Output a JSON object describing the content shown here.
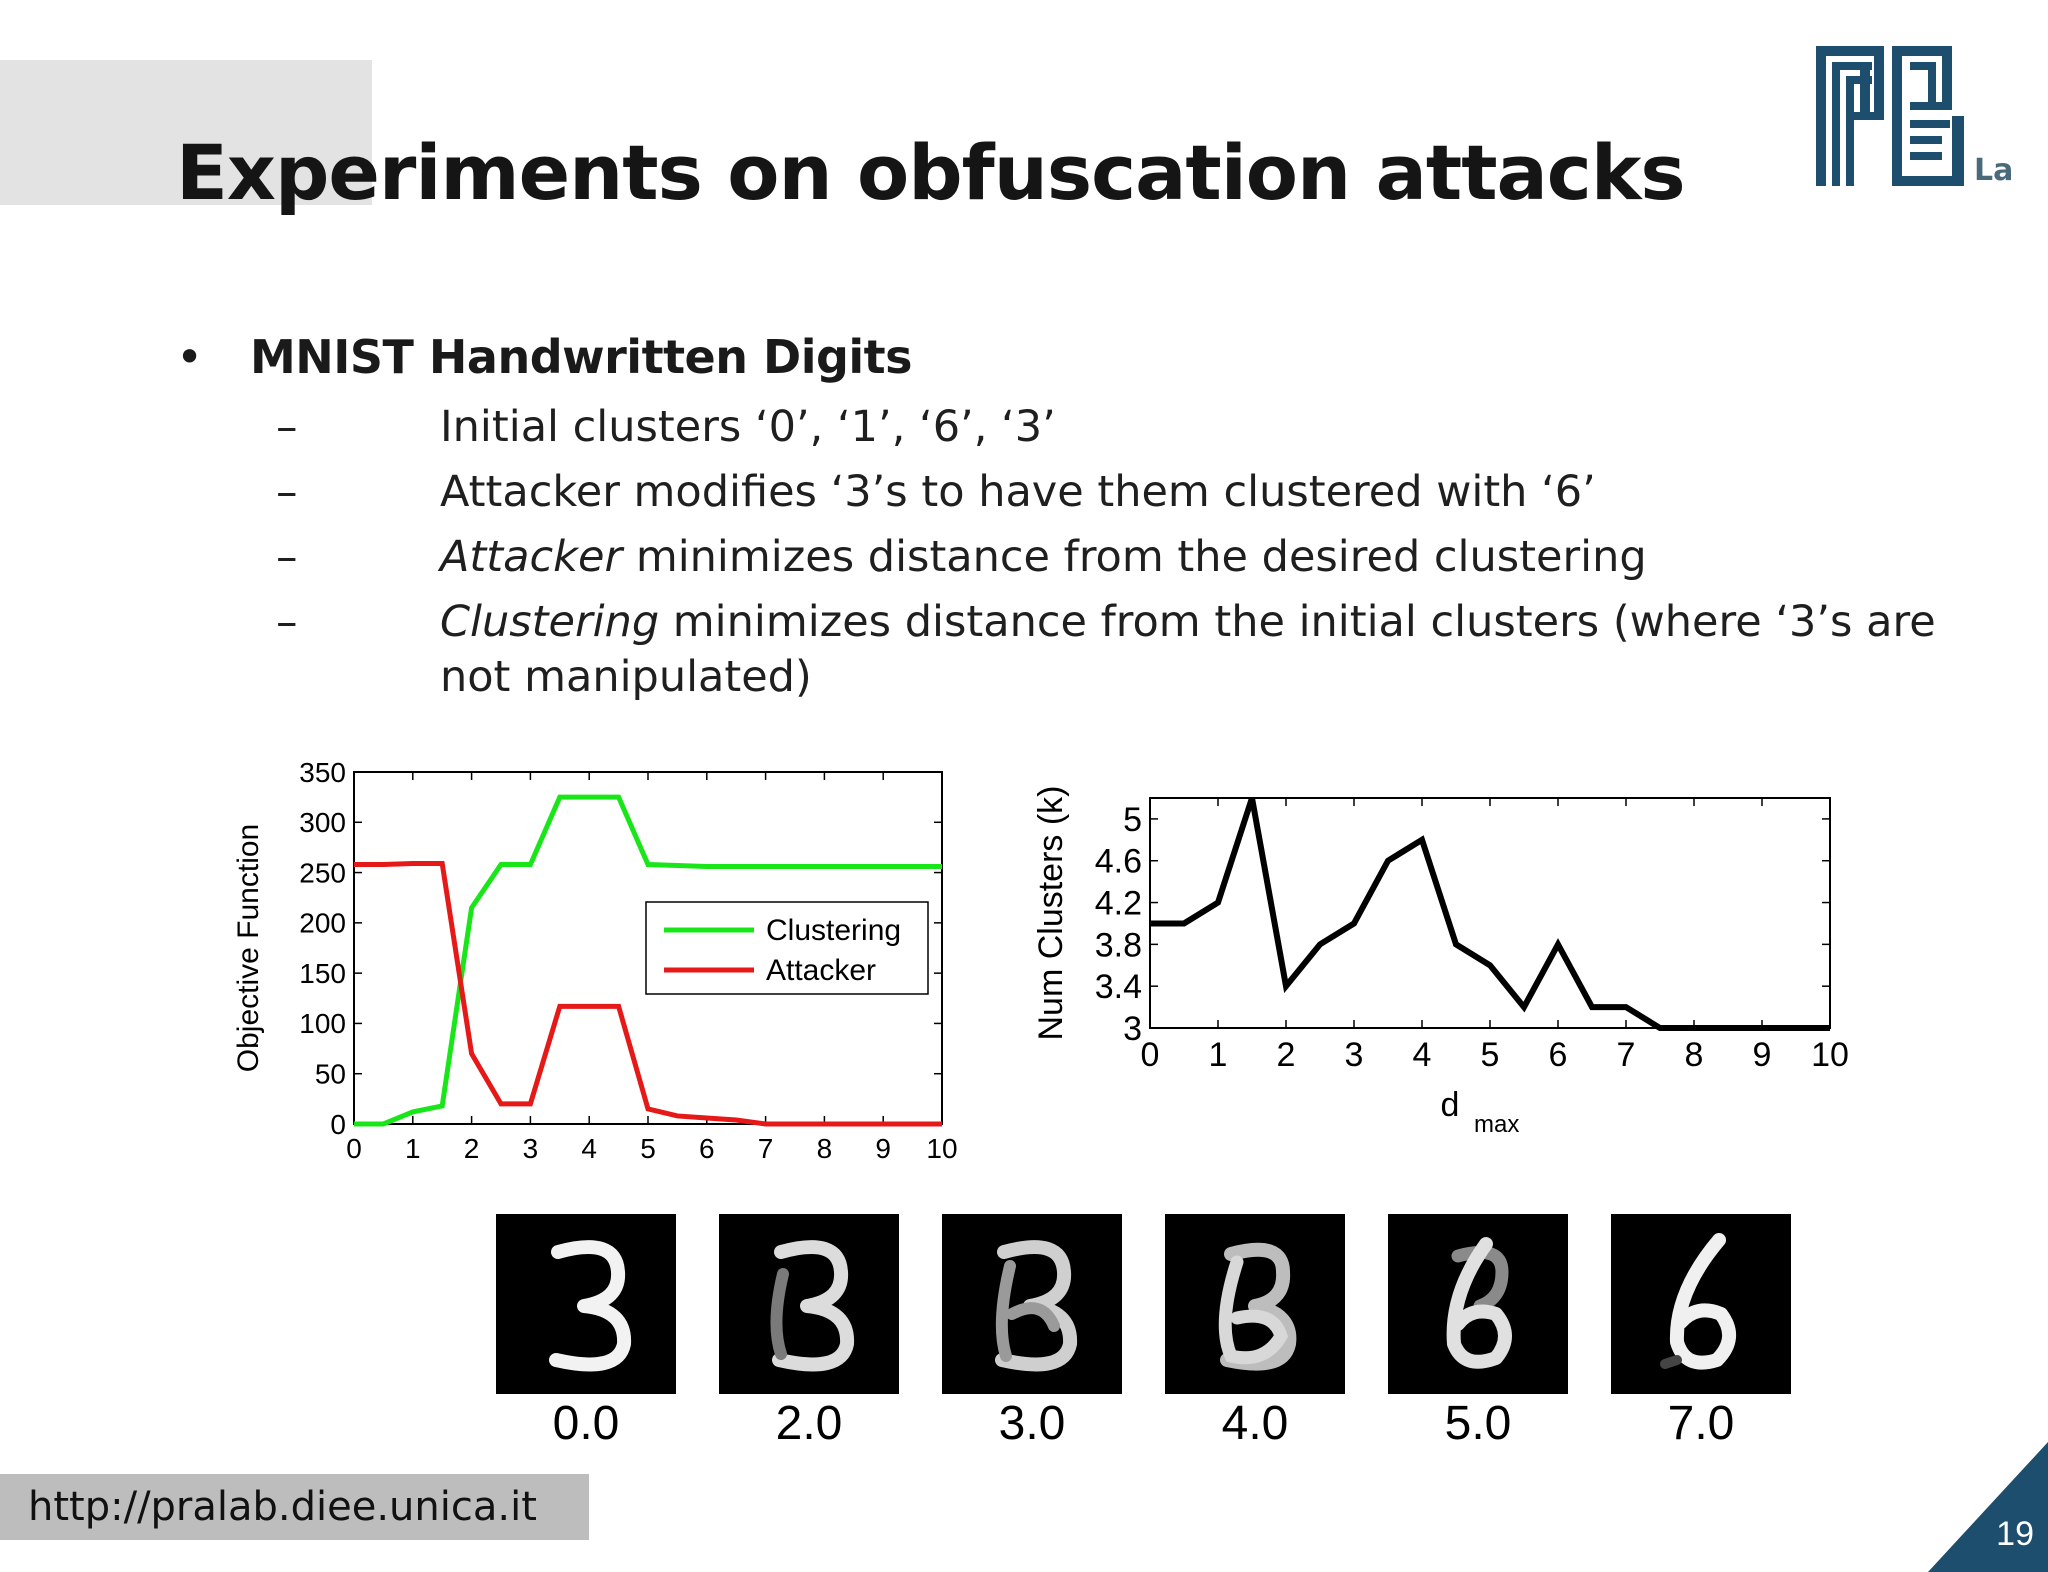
{
  "slide": {
    "title": "Experiments on obfuscation attacks",
    "logo_text": "Lab",
    "bullet": {
      "marker": "•",
      "text": "MNIST Handwritten Digits"
    },
    "subbullets": [
      {
        "marker": "–",
        "italic": "",
        "text": "Initial clusters ‘0’, ‘1’, ‘6’, ‘3’"
      },
      {
        "marker": "–",
        "italic": "",
        "text": "Attacker modifies ‘3’s to have them clustered with ‘6’"
      },
      {
        "marker": "–",
        "italic": "Attacker",
        "text": " minimizes distance from the desired clustering"
      },
      {
        "marker": "–",
        "italic": "Clustering",
        "text": " minimizes distance from the initial clusters (where ‘3’s are"
      },
      {
        "marker": "",
        "italic": "",
        "text": "not manipulated)"
      }
    ],
    "url": "http://pralab.diee.unica.it",
    "page_number": "19"
  },
  "chart_data": [
    {
      "type": "line",
      "ylabel": "Objective Function",
      "xlabel": "",
      "xlim": [
        0,
        10
      ],
      "ylim": [
        0,
        350
      ],
      "xticks": [
        "0",
        "1",
        "2",
        "3",
        "4",
        "5",
        "6",
        "7",
        "8",
        "9",
        "10"
      ],
      "yticks": [
        "0",
        "50",
        "100",
        "150",
        "200",
        "250",
        "300",
        "350"
      ],
      "legend": "center-right",
      "series": [
        {
          "name": "Clustering",
          "color": "#19e619",
          "x": [
            0,
            0.5,
            1,
            1.5,
            2,
            2.5,
            3,
            3.5,
            4,
            4.5,
            5,
            5.5,
            6,
            6.5,
            7,
            8,
            9,
            10
          ],
          "y": [
            0,
            0,
            12,
            18,
            215,
            258,
            258,
            325,
            325,
            325,
            258,
            257,
            256,
            256,
            256,
            256,
            256,
            256
          ]
        },
        {
          "name": "Attacker",
          "color": "#e61919",
          "x": [
            0,
            0.5,
            1,
            1.5,
            2,
            2.5,
            3,
            3.5,
            4,
            4.5,
            5,
            5.5,
            6,
            6.5,
            7,
            8,
            9,
            10
          ],
          "y": [
            258,
            258,
            259,
            259,
            70,
            20,
            20,
            117,
            117,
            117,
            15,
            8,
            6,
            4,
            0,
            0,
            0,
            0
          ]
        }
      ]
    },
    {
      "type": "line",
      "ylabel": "Num Clusters (k)",
      "xlabel": "d",
      "xlabel_sub": "max",
      "xlim": [
        0,
        10
      ],
      "ylim": [
        3,
        5.2
      ],
      "xticks": [
        "0",
        "1",
        "2",
        "3",
        "4",
        "5",
        "6",
        "7",
        "8",
        "9",
        "10"
      ],
      "yticks": [
        "3",
        "3.4",
        "3.8",
        "4.2",
        "4.6",
        "5"
      ],
      "series": [
        {
          "name": "",
          "color": "#000000",
          "x": [
            0,
            0.5,
            1,
            1.5,
            2,
            2.5,
            3,
            3.5,
            4,
            4.5,
            5,
            5.5,
            6,
            6.5,
            7,
            7.5,
            8,
            8.5,
            9,
            9.5,
            10
          ],
          "y": [
            4.0,
            4.0,
            4.2,
            5.2,
            3.4,
            3.8,
            4.0,
            4.6,
            4.8,
            3.8,
            3.6,
            3.2,
            3.8,
            3.2,
            3.2,
            3.0,
            3.0,
            3.0,
            3.0,
            3.0,
            3.0
          ]
        }
      ]
    }
  ],
  "digits": {
    "labels": [
      "0.0",
      "2.0",
      "3.0",
      "4.0",
      "5.0",
      "7.0"
    ]
  }
}
